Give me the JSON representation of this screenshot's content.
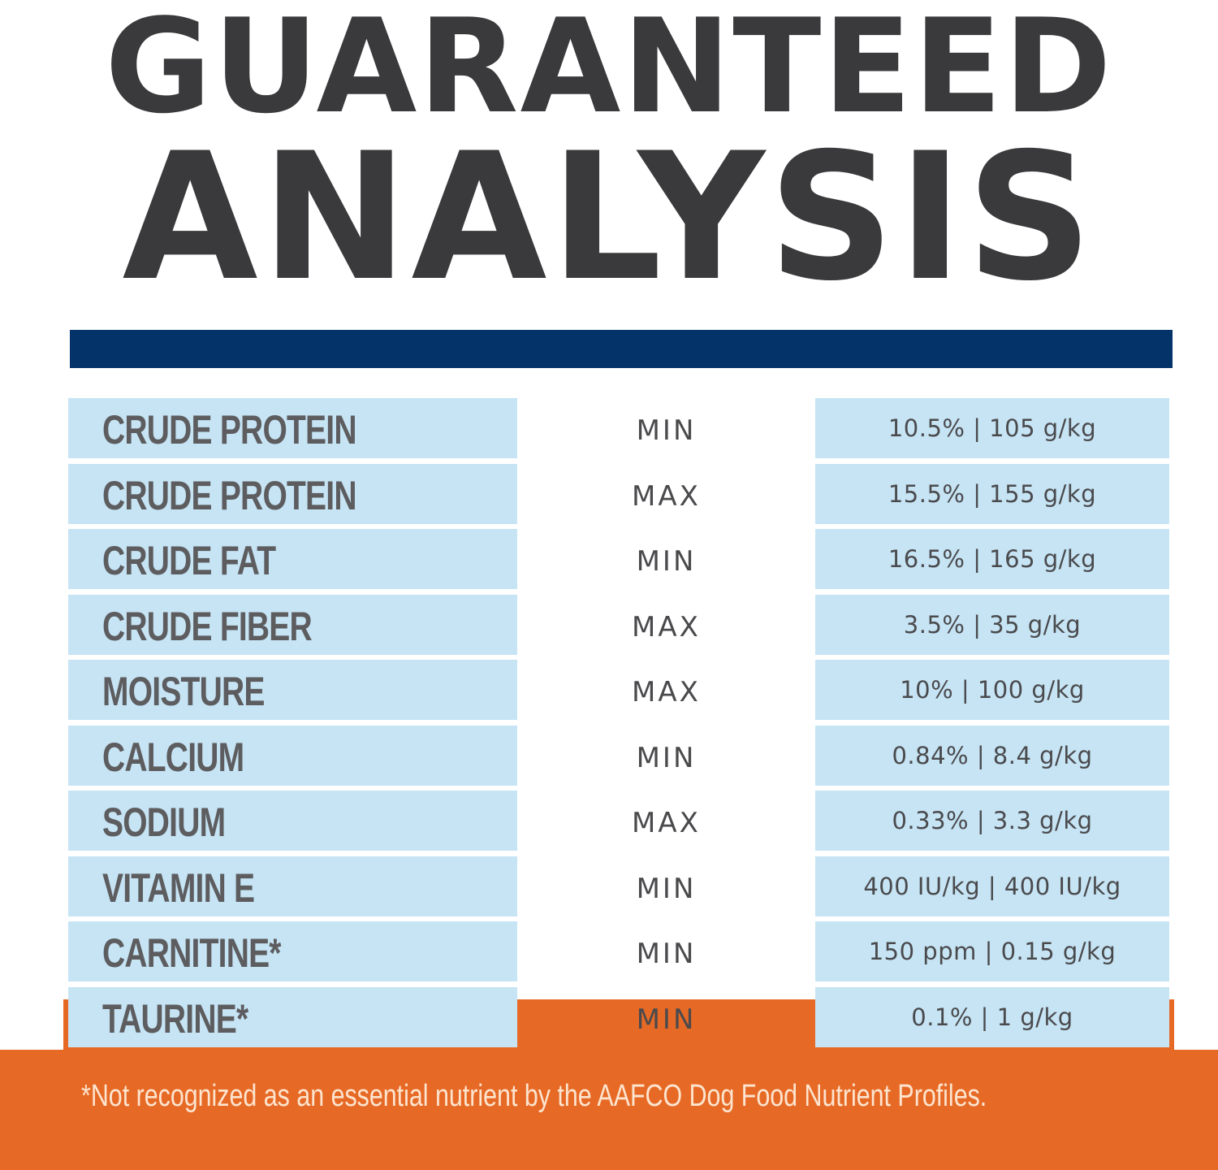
{
  "title": {
    "line1": "GUARANTEED",
    "line2": "ANALYSIS"
  },
  "colors": {
    "title_text": "#3a3a3c",
    "rule": "#04336a",
    "cell_background": "#c6e4f4",
    "orange_panel": "#e66a26",
    "footnote_text": "#fde4cf"
  },
  "table": {
    "rows": [
      {
        "nutrient": "CRUDE PROTEIN",
        "limit": "MIN",
        "value": "10.5% | 105 g/kg"
      },
      {
        "nutrient": "CRUDE PROTEIN",
        "limit": "MAX",
        "value": "15.5% | 155 g/kg"
      },
      {
        "nutrient": "CRUDE FAT",
        "limit": "MIN",
        "value": "16.5% | 165 g/kg"
      },
      {
        "nutrient": "CRUDE FIBER",
        "limit": "MAX",
        "value": "3.5% | 35 g/kg"
      },
      {
        "nutrient": "MOISTURE",
        "limit": "MAX",
        "value": "10% | 100 g/kg"
      },
      {
        "nutrient": "CALCIUM",
        "limit": "MIN",
        "value": "0.84% | 8.4 g/kg"
      },
      {
        "nutrient": "SODIUM",
        "limit": "MAX",
        "value": "0.33% | 3.3 g/kg"
      },
      {
        "nutrient": "VITAMIN E",
        "limit": "MIN",
        "value": "400 IU/kg | 400 IU/kg"
      },
      {
        "nutrient": "CARNITINE*",
        "limit": "MIN",
        "value": "150 ppm | 0.15 g/kg"
      },
      {
        "nutrient": "TAURINE*",
        "limit": "MIN",
        "value": "0.1% | 1 g/kg"
      }
    ]
  },
  "footnote": "*Not recognized as an essential nutrient by the AAFCO Dog Food Nutrient Profiles."
}
